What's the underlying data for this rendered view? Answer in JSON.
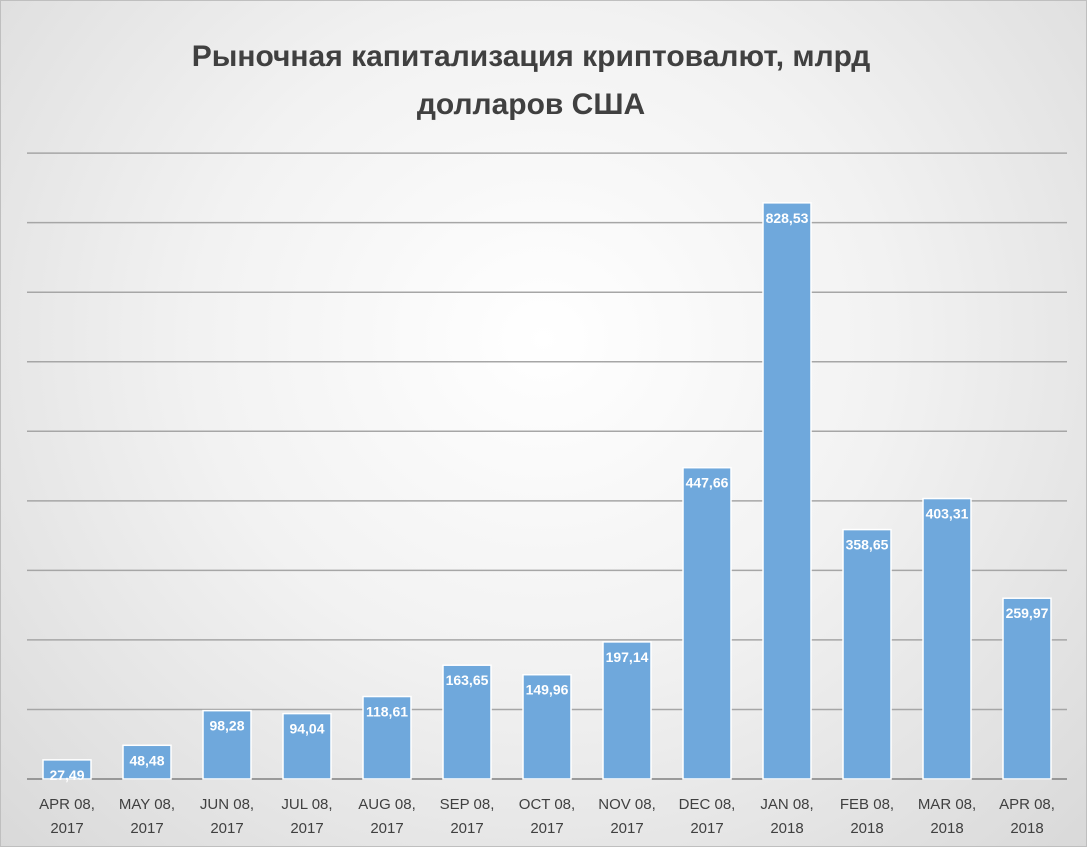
{
  "chart_data": {
    "type": "bar",
    "title": "Рыночная капитализация криптовалют, млрд долларов США",
    "title_lines": [
      "Рыночная капитализация криптовалют, млрд",
      "долларов США"
    ],
    "categories": [
      [
        "APR 08,",
        "2017"
      ],
      [
        "MAY 08,",
        "2017"
      ],
      [
        "JUN 08,",
        "2017"
      ],
      [
        "JUL 08,",
        "2017"
      ],
      [
        "AUG 08,",
        "2017"
      ],
      [
        "SEP 08,",
        "2017"
      ],
      [
        "OCT 08,",
        "2017"
      ],
      [
        "NOV 08,",
        "2017"
      ],
      [
        "DEC 08,",
        "2017"
      ],
      [
        "JAN 08,",
        "2018"
      ],
      [
        "FEB 08,",
        "2018"
      ],
      [
        "MAR 08,",
        "2018"
      ],
      [
        "APR 08,",
        "2018"
      ]
    ],
    "values": [
      27.49,
      48.48,
      98.28,
      94.04,
      118.61,
      163.65,
      149.96,
      197.14,
      447.66,
      828.53,
      358.65,
      403.31,
      259.97
    ],
    "value_labels": [
      "27,49",
      "48,48",
      "98,28",
      "94,04",
      "118,61",
      "163,65",
      "149,96",
      "197,14",
      "447,66",
      "828,53",
      "358,65",
      "403,31",
      "259,97"
    ],
    "xlabel": "",
    "ylabel": "",
    "ylim": [
      0,
      900
    ],
    "ytick_step": 100,
    "grid": true,
    "show_y_axis_labels": false,
    "colors": {
      "bar": "#5b9bd5",
      "bar_fill": "#6fa8dc",
      "bar_edge": "#ffffff",
      "gridline": "#a6a6a6",
      "axis_line": "#808080",
      "label_text": "#ffffff",
      "tick_text": "#404040"
    }
  }
}
